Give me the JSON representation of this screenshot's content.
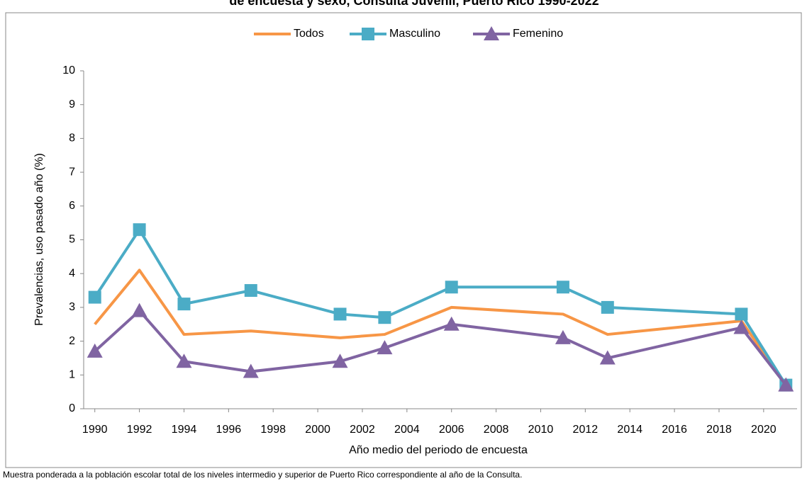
{
  "chart_data": {
    "type": "line",
    "title": "de encuesta y sexo, Consulta Juvenil, Puerto Rico 1990-2022",
    "x_label": "Año medio del periodo de encuesta",
    "y_label": "Prevalencias, uso pasado año (%)",
    "footnote": "Muestra ponderada a la población escolar total de los niveles intermedio y superior de Puerto Rico correspondiente al año de la Consulta.",
    "x": [
      1990,
      1992,
      1994,
      1997,
      2001,
      2003,
      2006,
      2011,
      2013,
      2019,
      2021
    ],
    "series": [
      {
        "name": "Todos",
        "color": "#f79646",
        "marker": "none",
        "values": [
          2.5,
          4.1,
          2.2,
          2.3,
          2.1,
          2.2,
          3.0,
          2.8,
          2.2,
          2.6,
          0.7
        ]
      },
      {
        "name": "Masculino",
        "color": "#4bacc6",
        "marker": "square",
        "values": [
          3.3,
          5.3,
          3.1,
          3.5,
          2.8,
          2.7,
          3.6,
          3.6,
          3.0,
          2.8,
          0.7
        ]
      },
      {
        "name": "Femenino",
        "color": "#8064a2",
        "marker": "triangle",
        "values": [
          1.7,
          2.9,
          1.4,
          1.1,
          1.4,
          1.8,
          2.5,
          2.1,
          1.5,
          2.4,
          0.7
        ]
      }
    ],
    "xlim": [
      1989.5,
      2021.5
    ],
    "xticks": [
      1990,
      1992,
      1994,
      1996,
      1998,
      2000,
      2002,
      2004,
      2006,
      2008,
      2010,
      2012,
      2014,
      2016,
      2018,
      2020
    ],
    "ylim": [
      0,
      10
    ],
    "yticks": [
      0,
      1,
      2,
      3,
      4,
      5,
      6,
      7,
      8,
      9,
      10
    ],
    "legend": "top"
  }
}
